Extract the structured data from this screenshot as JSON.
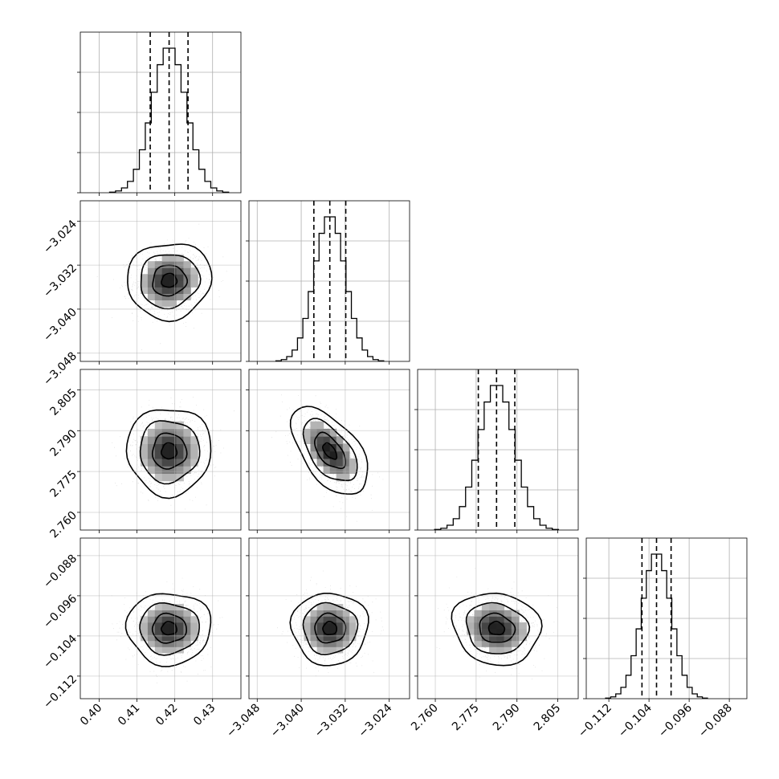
{
  "chart_data": {
    "type": "corner",
    "grid": true,
    "parameters": [
      {
        "range": [
          0.395,
          0.4375
        ],
        "ticks": [
          0.4,
          0.41,
          0.42,
          0.43
        ],
        "tick_labels": [
          "0.40",
          "0.41",
          "0.42",
          "0.43"
        ],
        "mean": 0.4185,
        "sigma": 0.0045,
        "quantiles": [
          0.4135,
          0.4185,
          0.4235
        ]
      },
      {
        "range": [
          -3.0495,
          -3.0203
        ],
        "ticks": [
          -3.048,
          -3.04,
          -3.032,
          -3.024
        ],
        "tick_labels": [
          "−3.048",
          "−3.040",
          "−3.032",
          "−3.024"
        ],
        "mean": -3.0348,
        "sigma": 0.0028,
        "quantiles": [
          -3.0377,
          -3.0348,
          -3.0319
        ]
      },
      {
        "range": [
          2.7535,
          2.8125
        ],
        "ticks": [
          2.76,
          2.775,
          2.79,
          2.805
        ],
        "tick_labels": [
          "2.760",
          "2.775",
          "2.790",
          "2.805"
        ],
        "mean": 2.7825,
        "sigma": 0.0065,
        "quantiles": [
          2.7758,
          2.7825,
          2.7892
        ]
      },
      {
        "range": [
          -0.1165,
          -0.0845
        ],
        "ticks": [
          -0.112,
          -0.104,
          -0.096,
          -0.088
        ],
        "tick_labels": [
          "−0.112",
          "−0.104",
          "−0.096",
          "−0.088"
        ],
        "mean": -0.1025,
        "sigma": 0.0029,
        "quantiles": [
          -0.1054,
          -0.1025,
          -0.0996
        ]
      }
    ],
    "correlations": [
      [
        0,
        0,
        0,
        0
      ],
      [
        0.05,
        0,
        0,
        0
      ],
      [
        0.0,
        -0.55,
        0,
        0
      ],
      [
        0.0,
        0.0,
        -0.1,
        0
      ]
    ]
  }
}
